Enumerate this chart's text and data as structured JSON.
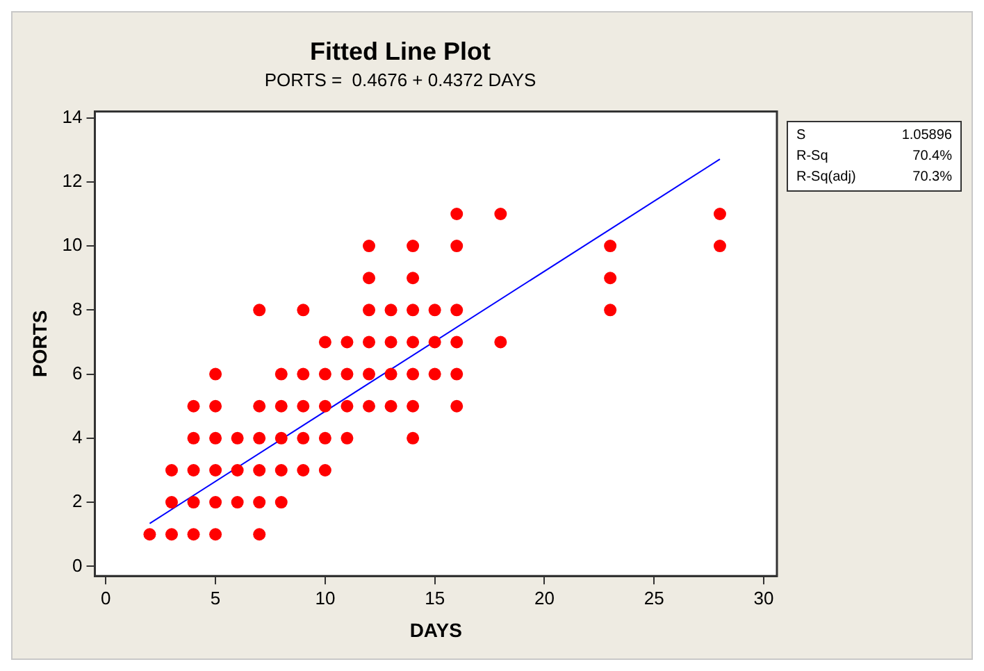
{
  "chart_data": {
    "type": "scatter",
    "title": "Fitted Line Plot",
    "subtitle": "PORTS =  0.4676 + 0.4372 DAYS",
    "xlabel": "DAYS",
    "ylabel": "PORTS",
    "xlim": [
      -0.5,
      30.6
    ],
    "ylim": [
      -0.3,
      14.2
    ],
    "xticks": [
      0,
      5,
      10,
      15,
      20,
      25,
      30
    ],
    "yticks": [
      0,
      2,
      4,
      6,
      8,
      10,
      12,
      14
    ],
    "marker": "circle",
    "legend": false,
    "annotations": [
      "S 1.05896",
      "R-Sq 70.4%",
      "R-Sq(adj) 70.3%"
    ],
    "series": [
      {
        "type": "scatter",
        "color": "#ff0000",
        "x": [
          2,
          3,
          3,
          3,
          4,
          4,
          4,
          4,
          4,
          5,
          5,
          5,
          5,
          5,
          5,
          6,
          6,
          6,
          7,
          7,
          7,
          7,
          7,
          7,
          8,
          8,
          8,
          8,
          8,
          9,
          9,
          9,
          9,
          9,
          10,
          10,
          10,
          10,
          10,
          11,
          11,
          11,
          11,
          12,
          12,
          12,
          12,
          12,
          12,
          13,
          13,
          13,
          13,
          14,
          14,
          14,
          14,
          14,
          14,
          14,
          15,
          15,
          15,
          16,
          16,
          16,
          16,
          16,
          16,
          18,
          18,
          23,
          23,
          23,
          28,
          28
        ],
        "values": [
          1,
          1,
          2,
          3,
          1,
          2,
          3,
          4,
          5,
          1,
          2,
          3,
          4,
          5,
          6,
          2,
          3,
          4,
          1,
          2,
          3,
          4,
          5,
          8,
          2,
          3,
          4,
          5,
          6,
          3,
          4,
          5,
          6,
          8,
          3,
          4,
          5,
          6,
          7,
          4,
          5,
          6,
          7,
          5,
          6,
          7,
          8,
          9,
          10,
          5,
          6,
          7,
          8,
          4,
          5,
          6,
          7,
          8,
          9,
          10,
          6,
          7,
          8,
          5,
          6,
          7,
          8,
          10,
          11,
          7,
          11,
          8,
          9,
          10,
          10,
          11
        ]
      },
      {
        "type": "line",
        "color": "#0000ff",
        "marker": "none",
        "x": [
          2,
          28
        ],
        "values": [
          1.34,
          12.71
        ]
      }
    ]
  }
}
